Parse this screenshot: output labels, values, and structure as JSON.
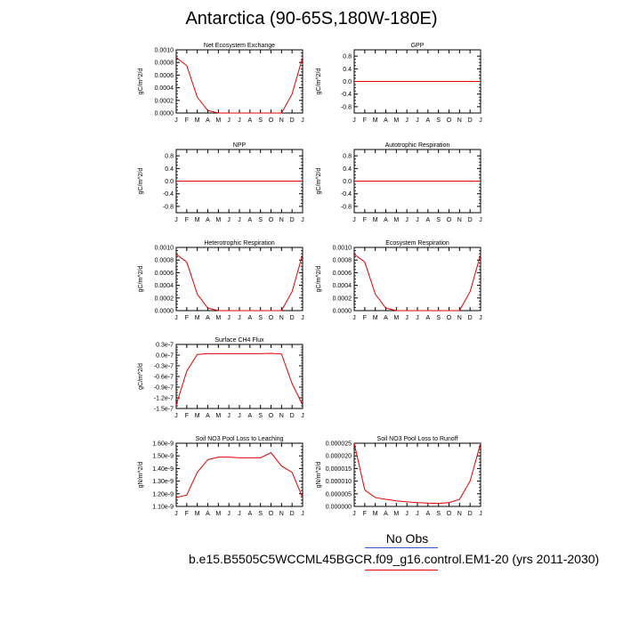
{
  "title": "Antarctica (90-65S,180W-180E)",
  "chart_data": [
    {
      "type": "line",
      "title": "Net Ecosystem Exchange",
      "ylabel": "gC/m^2/d",
      "categories": [
        "J",
        "F",
        "M",
        "A",
        "M",
        "J",
        "J",
        "A",
        "S",
        "O",
        "N",
        "D",
        "J"
      ],
      "ylim": [
        0,
        0.001
      ],
      "yticks": [
        "0.0000",
        "0.0002",
        "0.0004",
        "0.0006",
        "0.0008",
        "0.0010"
      ],
      "series": [
        {
          "values": [
            0.00088,
            0.00075,
            0.00025,
            4e-05,
            0.0,
            0.0,
            0.0,
            0.0,
            0.0,
            0.0,
            0.0,
            0.0003,
            0.00088
          ],
          "color": "#e00000"
        }
      ]
    },
    {
      "type": "line",
      "title": "GPP",
      "ylabel": "gC/m^2/d",
      "categories": [
        "J",
        "F",
        "M",
        "A",
        "M",
        "J",
        "J",
        "A",
        "S",
        "O",
        "N",
        "D",
        "J"
      ],
      "ylim": [
        -1,
        1
      ],
      "yticks": [
        "-0.8",
        "-0.4",
        "0.0",
        "0.4",
        "0.8"
      ],
      "series": [
        {
          "values": [
            0,
            0,
            0,
            0,
            0,
            0,
            0,
            0,
            0,
            0,
            0,
            0,
            0
          ],
          "color": "#e00000"
        }
      ]
    },
    {
      "type": "line",
      "title": "NPP",
      "ylabel": "gC/m^2/d",
      "categories": [
        "J",
        "F",
        "M",
        "A",
        "M",
        "J",
        "J",
        "A",
        "S",
        "O",
        "N",
        "D",
        "J"
      ],
      "ylim": [
        -1,
        1
      ],
      "yticks": [
        "-0.8",
        "-0.4",
        "0.0",
        "0.4",
        "0.8"
      ],
      "series": [
        {
          "values": [
            0,
            0,
            0,
            0,
            0,
            0,
            0,
            0,
            0,
            0,
            0,
            0,
            0
          ],
          "color": "#e00000"
        }
      ]
    },
    {
      "type": "line",
      "title": "Autotrophic Respiration",
      "ylabel": "gC/m^2/d",
      "categories": [
        "J",
        "F",
        "M",
        "A",
        "M",
        "J",
        "J",
        "A",
        "S",
        "O",
        "N",
        "D",
        "J"
      ],
      "ylim": [
        -1,
        1
      ],
      "yticks": [
        "-0.8",
        "-0.4",
        "0.0",
        "0.4",
        "0.8"
      ],
      "series": [
        {
          "values": [
            0,
            0,
            0,
            0,
            0,
            0,
            0,
            0,
            0,
            0,
            0,
            0,
            0
          ],
          "color": "#e00000"
        }
      ]
    },
    {
      "type": "line",
      "title": "Heterotrophic Respiration",
      "ylabel": "gC/m^2/d",
      "categories": [
        "J",
        "F",
        "M",
        "A",
        "M",
        "J",
        "J",
        "A",
        "S",
        "O",
        "N",
        "D",
        "J"
      ],
      "ylim": [
        0,
        0.001
      ],
      "yticks": [
        "0.0000",
        "0.0002",
        "0.0004",
        "0.0006",
        "0.0008",
        "0.0010"
      ],
      "series": [
        {
          "values": [
            0.00089,
            0.00077,
            0.00026,
            4e-05,
            0.0,
            0.0,
            0.0,
            0.0,
            0.0,
            0.0,
            0.0,
            0.0003,
            0.00089
          ],
          "color": "#e00000"
        }
      ]
    },
    {
      "type": "line",
      "title": "Ecosystem Respiration",
      "ylabel": "gC/m^2/d",
      "categories": [
        "J",
        "F",
        "M",
        "A",
        "M",
        "J",
        "J",
        "A",
        "S",
        "O",
        "N",
        "D",
        "J"
      ],
      "ylim": [
        0,
        0.001
      ],
      "yticks": [
        "0.0000",
        "0.0002",
        "0.0004",
        "0.0006",
        "0.0008",
        "0.0010"
      ],
      "series": [
        {
          "values": [
            0.00089,
            0.00077,
            0.00026,
            4e-05,
            0.0,
            0.0,
            0.0,
            0.0,
            0.0,
            0.0,
            0.0,
            0.0003,
            0.00089
          ],
          "color": "#e00000"
        }
      ]
    },
    {
      "type": "line",
      "title": "Surface CH4 Flux",
      "ylabel": "gC/m^2/d",
      "categories": [
        "J",
        "F",
        "M",
        "A",
        "M",
        "J",
        "J",
        "A",
        "S",
        "O",
        "N",
        "D",
        "J"
      ],
      "ylim": [
        -1.5e-07,
        3e-08
      ],
      "yticks": [
        "-1.5e-7",
        "-1.2e-7",
        "-0.9e-7",
        "-0.6e-7",
        "-0.3e-7",
        "0.0e-7",
        "0.3e-7"
      ],
      "series": [
        {
          "values": [
            -1.4e-07,
            -4.5e-08,
            2e-09,
            4e-09,
            4e-09,
            4e-09,
            4e-09,
            4e-09,
            4e-09,
            5e-09,
            3e-09,
            -8e-08,
            -1.4e-07
          ],
          "color": "#e00000"
        }
      ]
    },
    {
      "type": "line",
      "title": "Soil NO3 Pool Loss to Leaching",
      "ylabel": "gN/m^2/d",
      "categories": [
        "J",
        "F",
        "M",
        "A",
        "M",
        "J",
        "J",
        "A",
        "S",
        "O",
        "N",
        "D",
        "J"
      ],
      "ylim": [
        1.1e-09,
        1.6e-09
      ],
      "yticks": [
        "1.10e-9",
        "1.20e-9",
        "1.30e-9",
        "1.40e-9",
        "1.50e-9",
        "1.60e-9"
      ],
      "series": [
        {
          "values": [
            1.17e-09,
            1.19e-09,
            1.37e-09,
            1.47e-09,
            1.49e-09,
            1.49e-09,
            1.485e-09,
            1.485e-09,
            1.485e-09,
            1.525e-09,
            1.42e-09,
            1.37e-09,
            1.17e-09
          ],
          "color": "#e00000"
        }
      ]
    },
    {
      "type": "line",
      "title": "Soil NO3 Pool Loss to Runoff",
      "ylabel": "gN/m^2/d",
      "categories": [
        "J",
        "F",
        "M",
        "A",
        "M",
        "J",
        "J",
        "A",
        "S",
        "O",
        "N",
        "D",
        "J"
      ],
      "ylim": [
        0,
        2.5e-05
      ],
      "yticks": [
        "0.000000",
        "0.000005",
        "0.000010",
        "0.000015",
        "0.000020",
        "0.000025"
      ],
      "series": [
        {
          "values": [
            2.5e-05,
            6.5e-06,
            3.5e-06,
            2.8e-06,
            2.2e-06,
            1.8e-06,
            1.5e-06,
            1.3e-06,
            1.2e-06,
            1.5e-06,
            2.8e-06,
            1e-05,
            2.5e-05
          ],
          "color": "#e00000"
        }
      ]
    }
  ],
  "legend": {
    "title": "No Obs",
    "entry": "b.e15.B5505C5WCCML45BGCR.f09_g16.control.EM1-20 (yrs 2011-2030)",
    "title_line_color": "#3355cc",
    "entry_line_color": "#e00000"
  }
}
